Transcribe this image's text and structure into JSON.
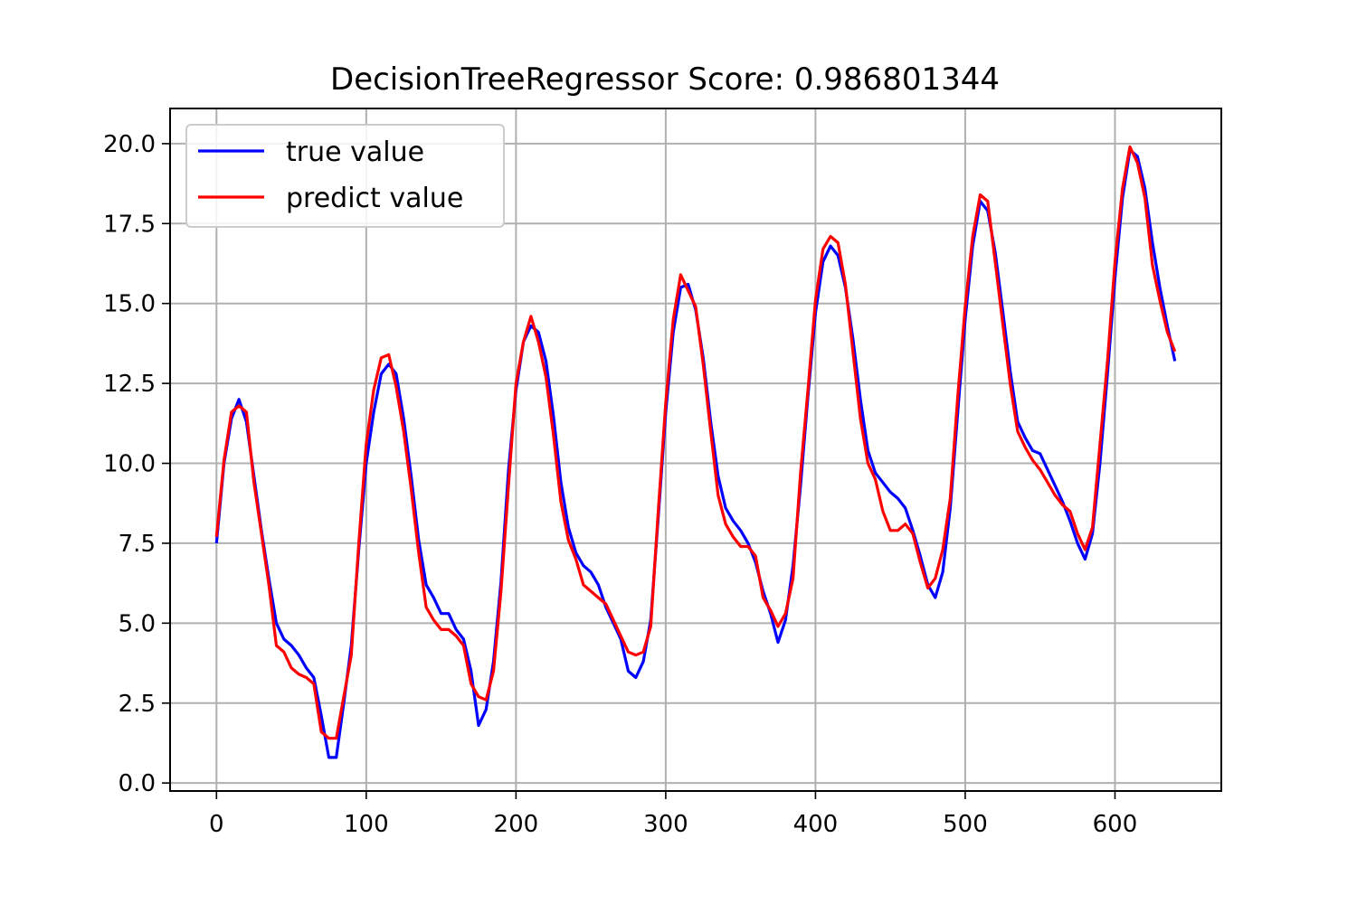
{
  "chart_data": {
    "type": "line",
    "title": "DecisionTreeRegressor  Score:     0.986801344",
    "xlabel": "",
    "ylabel": "",
    "xlim": [
      -31,
      671
    ],
    "ylim": [
      -0.25,
      21.1
    ],
    "grid": true,
    "legend_position": "top-left",
    "x_ticks": [
      0,
      100,
      200,
      300,
      400,
      500,
      600
    ],
    "x_tick_labels": [
      "0",
      "100",
      "200",
      "300",
      "400",
      "500",
      "600"
    ],
    "y_ticks": [
      0,
      2.5,
      5,
      7.5,
      10,
      12.5,
      15,
      17.5,
      20
    ],
    "y_tick_labels": [
      "0.0",
      "2.5",
      "5.0",
      "7.5",
      "10.0",
      "12.5",
      "15.0",
      "17.5",
      "20.0"
    ],
    "series": [
      {
        "name": "true value",
        "color": "#0000ff",
        "x": [
          0,
          5,
          10,
          15,
          20,
          25,
          30,
          35,
          40,
          45,
          50,
          55,
          60,
          65,
          70,
          75,
          80,
          85,
          90,
          95,
          100,
          105,
          110,
          115,
          120,
          125,
          130,
          135,
          140,
          145,
          150,
          155,
          160,
          165,
          170,
          175,
          180,
          185,
          190,
          195,
          200,
          205,
          210,
          215,
          220,
          225,
          230,
          235,
          240,
          245,
          250,
          255,
          260,
          265,
          270,
          275,
          280,
          285,
          290,
          295,
          300,
          305,
          310,
          315,
          320,
          325,
          330,
          335,
          340,
          345,
          350,
          355,
          360,
          365,
          370,
          375,
          380,
          385,
          390,
          395,
          400,
          405,
          410,
          415,
          420,
          425,
          430,
          435,
          440,
          445,
          450,
          455,
          460,
          465,
          470,
          475,
          480,
          485,
          490,
          495,
          500,
          505,
          510,
          515,
          520,
          525,
          530,
          535,
          540,
          545,
          550,
          555,
          560,
          565,
          570,
          575,
          580,
          585,
          590,
          595,
          600,
          605,
          610,
          615,
          620,
          625,
          630,
          635,
          640
        ],
        "values": [
          7.5,
          10.0,
          11.4,
          12.0,
          11.3,
          9.6,
          7.9,
          6.4,
          5.0,
          4.5,
          4.3,
          4.0,
          3.6,
          3.3,
          2.1,
          0.8,
          0.8,
          2.5,
          4.3,
          7.3,
          10.0,
          11.6,
          12.8,
          13.1,
          12.8,
          11.4,
          9.6,
          7.6,
          6.2,
          5.8,
          5.3,
          5.3,
          4.8,
          4.5,
          3.5,
          1.8,
          2.3,
          3.8,
          6.3,
          9.8,
          12.3,
          13.8,
          14.3,
          14.1,
          13.2,
          11.5,
          9.4,
          8.0,
          7.2,
          6.8,
          6.6,
          6.2,
          5.5,
          5.0,
          4.5,
          3.5,
          3.3,
          3.8,
          5.1,
          8.3,
          11.6,
          14.1,
          15.5,
          15.6,
          14.8,
          13.3,
          11.3,
          9.6,
          8.6,
          8.2,
          7.9,
          7.5,
          6.9,
          6.0,
          5.3,
          4.4,
          5.1,
          6.8,
          9.3,
          12.1,
          14.7,
          16.3,
          16.8,
          16.5,
          15.5,
          13.9,
          12.0,
          10.4,
          9.7,
          9.4,
          9.1,
          8.9,
          8.6,
          7.9,
          7.1,
          6.2,
          5.8,
          6.6,
          8.6,
          11.6,
          14.5,
          16.8,
          18.2,
          17.9,
          16.6,
          14.8,
          12.9,
          11.3,
          10.8,
          10.4,
          10.3,
          9.8,
          9.3,
          8.8,
          8.2,
          7.5,
          7.0,
          7.8,
          10.0,
          12.8,
          15.8,
          18.3,
          19.8,
          19.6,
          18.6,
          16.9,
          15.5,
          14.3,
          13.2
        ]
      },
      {
        "name": "predict value",
        "color": "#ff0000",
        "x": [
          0,
          5,
          10,
          15,
          20,
          25,
          30,
          35,
          40,
          45,
          50,
          55,
          60,
          65,
          70,
          75,
          80,
          85,
          90,
          95,
          100,
          105,
          110,
          115,
          120,
          125,
          130,
          135,
          140,
          145,
          150,
          155,
          160,
          165,
          170,
          175,
          180,
          185,
          190,
          195,
          200,
          205,
          210,
          215,
          220,
          225,
          230,
          235,
          240,
          245,
          250,
          255,
          260,
          265,
          270,
          275,
          280,
          285,
          290,
          295,
          300,
          305,
          310,
          315,
          320,
          325,
          330,
          335,
          340,
          345,
          350,
          355,
          360,
          365,
          370,
          375,
          380,
          385,
          390,
          395,
          400,
          405,
          410,
          415,
          420,
          425,
          430,
          435,
          440,
          445,
          450,
          455,
          460,
          465,
          470,
          475,
          480,
          485,
          490,
          495,
          500,
          505,
          510,
          515,
          520,
          525,
          530,
          535,
          540,
          545,
          550,
          555,
          560,
          565,
          570,
          575,
          580,
          585,
          590,
          595,
          600,
          605,
          610,
          615,
          620,
          625,
          630,
          635,
          640
        ],
        "values": [
          7.7,
          10.1,
          11.6,
          11.8,
          11.6,
          9.4,
          7.8,
          6.2,
          4.3,
          4.1,
          3.6,
          3.4,
          3.3,
          3.1,
          1.6,
          1.4,
          1.4,
          2.7,
          4.0,
          7.5,
          10.6,
          12.3,
          13.3,
          13.4,
          12.4,
          11.0,
          9.2,
          7.2,
          5.5,
          5.1,
          4.8,
          4.8,
          4.6,
          4.3,
          3.1,
          2.7,
          2.6,
          3.5,
          6.0,
          9.3,
          12.5,
          13.8,
          14.6,
          13.8,
          12.7,
          10.9,
          8.8,
          7.6,
          7.0,
          6.2,
          6.0,
          5.8,
          5.6,
          5.1,
          4.6,
          4.1,
          4.0,
          4.1,
          4.9,
          8.5,
          11.9,
          14.5,
          15.9,
          15.4,
          14.9,
          13.1,
          11.0,
          9.0,
          8.1,
          7.7,
          7.4,
          7.4,
          7.1,
          5.8,
          5.4,
          4.9,
          5.3,
          6.4,
          9.7,
          12.3,
          15.1,
          16.7,
          17.1,
          16.9,
          15.6,
          13.5,
          11.4,
          10.0,
          9.5,
          8.5,
          7.9,
          7.9,
          8.1,
          7.8,
          6.9,
          6.1,
          6.4,
          7.3,
          8.9,
          12.1,
          14.9,
          17.1,
          18.4,
          18.2,
          16.3,
          14.4,
          12.5,
          11.0,
          10.5,
          10.1,
          9.8,
          9.4,
          9.0,
          8.7,
          8.5,
          7.8,
          7.3,
          8.0,
          10.6,
          13.2,
          16.3,
          18.6,
          19.9,
          19.4,
          18.3,
          16.2,
          15.1,
          14.1,
          13.5
        ]
      }
    ]
  }
}
